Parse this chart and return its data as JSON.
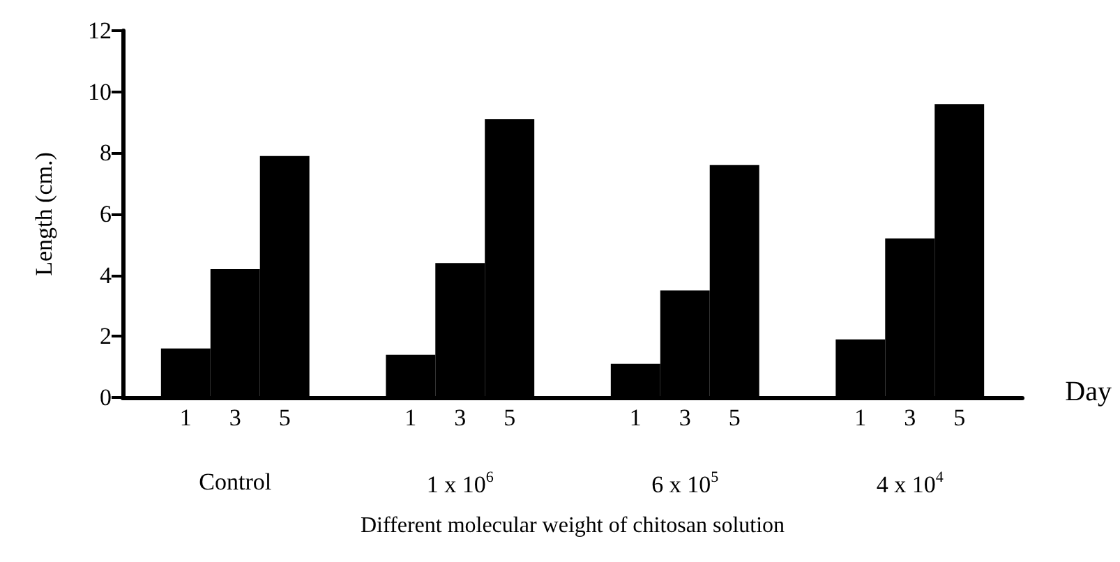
{
  "chart_data": {
    "type": "bar",
    "xlabel": "Different molecular weight of chitosan solution",
    "ylabel": "Length (cm.)",
    "categories": [
      "Control",
      "1 x 10$^{6}$",
      "6 x 10$^{5}$",
      "4 x 10$^{4}$"
    ],
    "series": [
      {
        "name": "1",
        "color": "#000000",
        "values": [
          1.6,
          1.4,
          1.1,
          1.9
        ]
      },
      {
        "name": "3",
        "color": "#000000",
        "values": [
          4.2,
          4.4,
          3.5,
          5.2
        ]
      },
      {
        "name": "5",
        "color": "#000000",
        "values": [
          7.9,
          9.1,
          7.6,
          9.6
        ]
      }
    ],
    "ylim": [
      0,
      12
    ],
    "yticks": [
      0,
      2,
      4,
      6,
      8,
      10,
      12
    ],
    "grid": false,
    "legend": false,
    "annotations": [
      "Day"
    ]
  }
}
